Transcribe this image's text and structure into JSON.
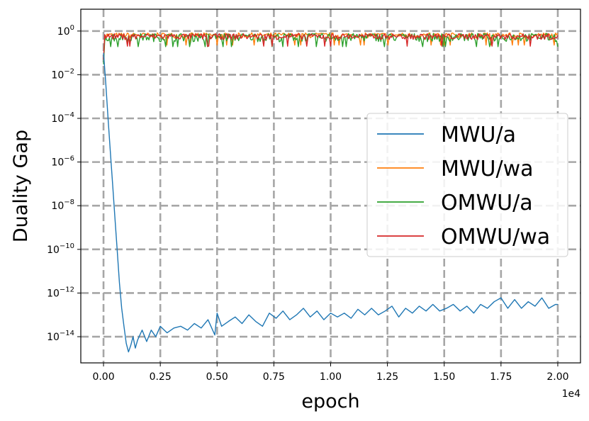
{
  "chart_data": {
    "type": "line",
    "title": "",
    "xlabel": "epoch",
    "ylabel": "Duality Gap",
    "x_offset_label": "1e4",
    "xlim": [
      -0.1,
      2.1
    ],
    "ylim_log10": [
      -15.2,
      1.0
    ],
    "yscale": "log",
    "grid": true,
    "legend_position": "center-right",
    "x_ticks": [
      {
        "v": 0.0,
        "label": "0.00"
      },
      {
        "v": 0.25,
        "label": "0.25"
      },
      {
        "v": 0.5,
        "label": "0.50"
      },
      {
        "v": 0.75,
        "label": "0.75"
      },
      {
        "v": 1.0,
        "label": "1.00"
      },
      {
        "v": 1.25,
        "label": "1.25"
      },
      {
        "v": 1.5,
        "label": "1.50"
      },
      {
        "v": 1.75,
        "label": "1.75"
      },
      {
        "v": 2.0,
        "label": "2.00"
      }
    ],
    "y_ticks": [
      {
        "exp": 0,
        "base": "10",
        "sup": "0"
      },
      {
        "exp": -2,
        "base": "10",
        "sup": "−2"
      },
      {
        "exp": -4,
        "base": "10",
        "sup": "−4"
      },
      {
        "exp": -6,
        "base": "10",
        "sup": "−6"
      },
      {
        "exp": -8,
        "base": "10",
        "sup": "−8"
      },
      {
        "exp": -10,
        "base": "10",
        "sup": "−10"
      },
      {
        "exp": -12,
        "base": "10",
        "sup": "−12"
      },
      {
        "exp": -14,
        "base": "10",
        "sup": "−14"
      }
    ],
    "series": [
      {
        "name": "MWU/a",
        "color": "#1f77b4",
        "x": [
          0.0,
          0.01,
          0.02,
          0.03,
          0.04,
          0.05,
          0.06,
          0.07,
          0.08,
          0.09,
          0.1,
          0.11,
          0.12,
          0.13,
          0.14,
          0.15,
          0.17,
          0.19,
          0.21,
          0.23,
          0.25,
          0.28,
          0.31,
          0.34,
          0.37,
          0.4,
          0.43,
          0.46,
          0.49,
          0.5,
          0.52,
          0.55,
          0.58,
          0.61,
          0.64,
          0.67,
          0.7,
          0.73,
          0.76,
          0.79,
          0.82,
          0.85,
          0.88,
          0.91,
          0.94,
          0.97,
          1.0,
          1.03,
          1.06,
          1.09,
          1.12,
          1.15,
          1.18,
          1.21,
          1.24,
          1.27,
          1.3,
          1.33,
          1.36,
          1.39,
          1.42,
          1.45,
          1.48,
          1.51,
          1.54,
          1.57,
          1.6,
          1.63,
          1.66,
          1.69,
          1.72,
          1.75,
          1.78,
          1.81,
          1.84,
          1.87,
          1.9,
          1.93,
          1.96,
          1.99,
          2.0
        ],
        "y": [
          0.1,
          0.004,
          0.0001,
          3e-06,
          1e-07,
          3e-09,
          1e-10,
          3e-12,
          2e-13,
          3e-14,
          5e-15,
          2e-15,
          4e-15,
          1e-14,
          3e-15,
          7e-15,
          2e-14,
          6e-15,
          2e-14,
          1e-14,
          3e-14,
          1.5e-14,
          2.5e-14,
          3e-14,
          2e-14,
          4e-14,
          2.5e-14,
          6e-14,
          1.2e-14,
          1.2e-13,
          3e-14,
          5e-14,
          8e-14,
          4e-14,
          1e-13,
          5e-14,
          3e-14,
          1.2e-13,
          7e-14,
          1.5e-13,
          6e-14,
          1e-13,
          2e-13,
          8e-14,
          1.5e-13,
          6e-14,
          1.2e-13,
          8e-14,
          1.2e-13,
          7e-14,
          1.8e-13,
          1e-13,
          2e-13,
          1e-13,
          1.5e-13,
          2.5e-13,
          8e-14,
          2e-13,
          1.2e-13,
          2.5e-13,
          1.5e-13,
          3e-13,
          1.5e-13,
          2e-13,
          3e-13,
          1.5e-13,
          2.5e-13,
          1.2e-13,
          3e-13,
          2e-13,
          4e-13,
          6e-13,
          2e-13,
          5e-13,
          2e-13,
          4e-13,
          2.5e-13,
          6e-13,
          2e-13,
          3e-13,
          3e-13
        ]
      },
      {
        "name": "MWU/wa",
        "color": "#ff7f0e",
        "x_range": [
          0.0,
          2.0
        ],
        "y_start": 0.05,
        "y_base": 0.65,
        "y_spread": 0.35
      },
      {
        "name": "OMWU/a",
        "color": "#2ca02c",
        "x_range": [
          0.0,
          2.0
        ],
        "y_start": 0.03,
        "y_base": 0.55,
        "y_spread": 0.45
      },
      {
        "name": "OMWU/wa",
        "color": "#d62728",
        "x_range": [
          0.0,
          2.0
        ],
        "y_start": 0.05,
        "y_base": 0.58,
        "y_spread": 0.35
      }
    ]
  }
}
